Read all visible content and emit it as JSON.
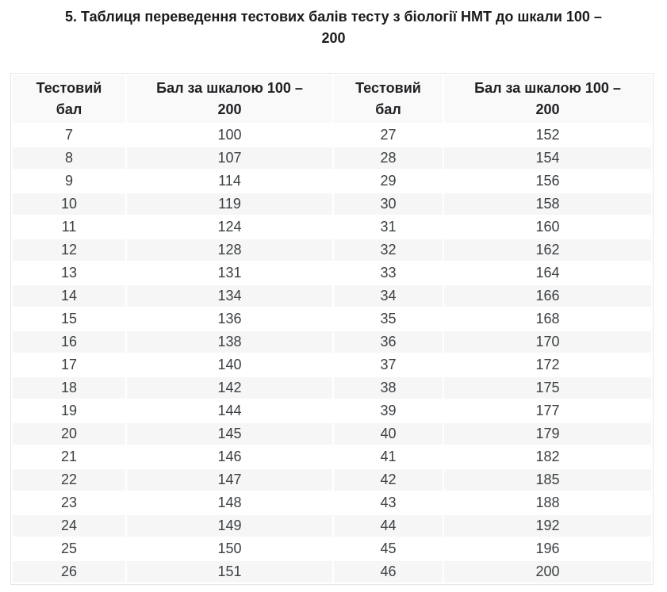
{
  "page": {
    "title_lines": [
      "5. Таблиця переведення тестових балів тесту з біології НМТ до шкали 100 –",
      "200"
    ]
  },
  "table": {
    "headers": [
      "Тестовий бал",
      "Бал за шкалою 100 – 200",
      "Тестовий бал",
      "Бал за шкалою 100 – 200"
    ],
    "rows": [
      [
        "7",
        "100",
        "27",
        "152"
      ],
      [
        "8",
        "107",
        "28",
        "154"
      ],
      [
        "9",
        "114",
        "29",
        "156"
      ],
      [
        "10",
        "119",
        "30",
        "158"
      ],
      [
        "11",
        "124",
        "31",
        "160"
      ],
      [
        "12",
        "128",
        "32",
        "162"
      ],
      [
        "13",
        "131",
        "33",
        "164"
      ],
      [
        "14",
        "134",
        "34",
        "166"
      ],
      [
        "15",
        "136",
        "35",
        "168"
      ],
      [
        "16",
        "138",
        "36",
        "170"
      ],
      [
        "17",
        "140",
        "37",
        "172"
      ],
      [
        "18",
        "142",
        "38",
        "175"
      ],
      [
        "19",
        "144",
        "39",
        "177"
      ],
      [
        "20",
        "145",
        "40",
        "179"
      ],
      [
        "21",
        "146",
        "41",
        "182"
      ],
      [
        "22",
        "147",
        "42",
        "185"
      ],
      [
        "23",
        "148",
        "43",
        "188"
      ],
      [
        "24",
        "149",
        "44",
        "192"
      ],
      [
        "25",
        "150",
        "45",
        "196"
      ],
      [
        "26",
        "151",
        "46",
        "200"
      ]
    ]
  },
  "colors": {
    "header_bg": "#f9f9f9",
    "stripe_bg": "#f6f6f6",
    "border": "#e6e6e6",
    "title_text": "#1b1b1b",
    "header_text": "#202124",
    "cell_text": "#3c4043"
  }
}
